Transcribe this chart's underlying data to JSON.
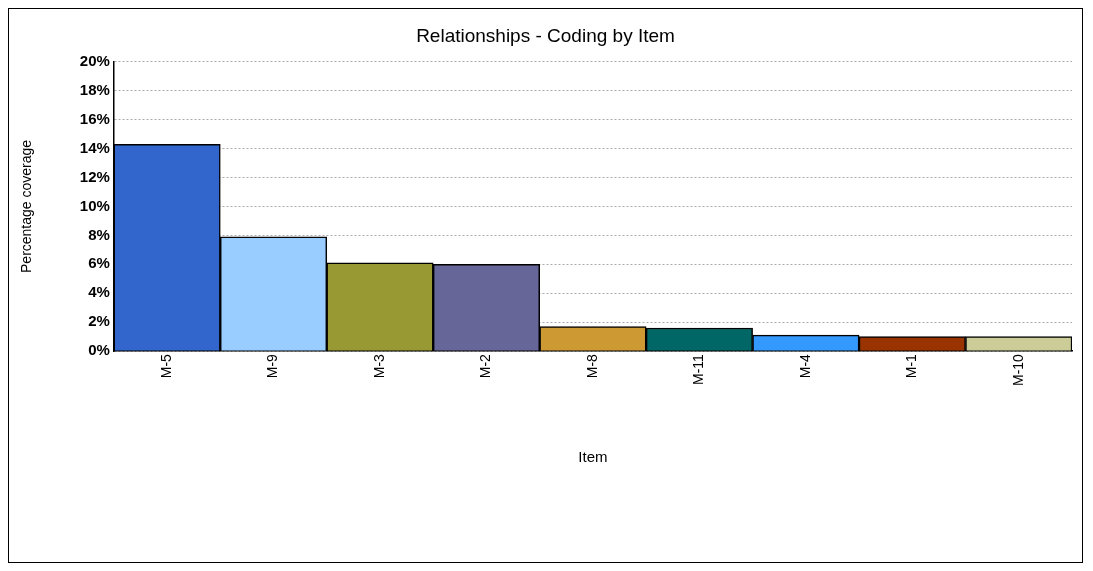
{
  "chart_data": {
    "type": "bar",
    "title": "Relationships - Coding by Item",
    "xlabel": "Item",
    "ylabel": "Percentage coverage",
    "categories": [
      "M-5",
      "M-9",
      "M-3",
      "M-2",
      "M-8",
      "M-11",
      "M-4",
      "M-1",
      "M-10"
    ],
    "values": [
      14.3,
      7.9,
      6.1,
      6.0,
      1.7,
      1.6,
      1.1,
      1.0,
      1.0
    ],
    "colors": [
      "#3366cc",
      "#99ccff",
      "#999933",
      "#666699",
      "#cc9933",
      "#006666",
      "#3399ff",
      "#993300",
      "#cccc99"
    ],
    "ylim": [
      0,
      20
    ],
    "yticks": [
      {
        "value": 0,
        "label": "0%"
      },
      {
        "value": 2,
        "label": "2%"
      },
      {
        "value": 4,
        "label": "4%"
      },
      {
        "value": 6,
        "label": "6%"
      },
      {
        "value": 8,
        "label": "8%"
      },
      {
        "value": 10,
        "label": "10%"
      },
      {
        "value": 12,
        "label": "12%"
      },
      {
        "value": 14,
        "label": "14%"
      },
      {
        "value": 16,
        "label": "16%"
      },
      {
        "value": 18,
        "label": "18%"
      },
      {
        "value": 20,
        "label": "20%"
      }
    ],
    "grid": "y"
  }
}
